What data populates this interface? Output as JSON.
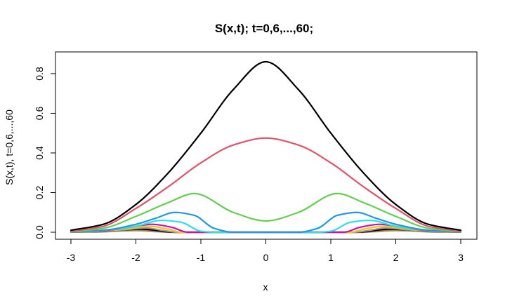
{
  "chart_data": {
    "type": "line",
    "title": "S(x,t); t=0,6,...,60;",
    "xlabel": "x",
    "ylabel": "S(x,t), t=0,6,...,60",
    "xlim": [
      -3,
      3
    ],
    "ylim": [
      0,
      0.86
    ],
    "x_ticks": [
      -3,
      -2,
      -1,
      0,
      1,
      2,
      3
    ],
    "y_ticks": [
      0.0,
      0.2,
      0.4,
      0.6,
      0.8
    ],
    "x_tick_labels": [
      "-3",
      "-2",
      "-1",
      "0",
      "1",
      "2",
      "3"
    ],
    "y_tick_labels": [
      "0.0",
      "0.2",
      "0.4",
      "0.6",
      "0.8"
    ],
    "grid": false,
    "legend": "none",
    "series": [
      {
        "color": "#000000",
        "x": [
          -3,
          -2.5,
          -2,
          -1.5,
          -1,
          -0.5,
          0,
          0.5,
          1,
          1.5,
          2,
          2.5,
          3
        ],
        "y": [
          0.01,
          0.04,
          0.14,
          0.3,
          0.5,
          0.72,
          0.86,
          0.72,
          0.5,
          0.3,
          0.14,
          0.04,
          0.01
        ]
      },
      {
        "color": "#DF536B",
        "x": [
          -3,
          -2.5,
          -2,
          -1.5,
          -1,
          -0.5,
          0,
          0.5,
          1,
          1.5,
          2,
          2.5,
          3
        ],
        "y": [
          0.005,
          0.03,
          0.12,
          0.23,
          0.35,
          0.44,
          0.475,
          0.44,
          0.35,
          0.23,
          0.12,
          0.03,
          0.005
        ]
      },
      {
        "color": "#61D04F",
        "x": [
          -3,
          -2.5,
          -2,
          -1.5,
          -1.1,
          -0.5,
          0,
          0.5,
          1.1,
          1.5,
          2,
          2.5,
          3
        ],
        "y": [
          0.003,
          0.02,
          0.08,
          0.15,
          0.195,
          0.1,
          0.057,
          0.1,
          0.195,
          0.15,
          0.08,
          0.02,
          0.003
        ]
      },
      {
        "color": "#2297E6",
        "x": [
          -3,
          -2.5,
          -2,
          -1.7,
          -1.4,
          -1.1,
          -0.8,
          -0.5,
          0,
          0.5,
          0.8,
          1.1,
          1.4,
          1.7,
          2,
          2.5,
          3
        ],
        "y": [
          0.003,
          0.01,
          0.04,
          0.07,
          0.1,
          0.085,
          0.02,
          0,
          0,
          0,
          0.02,
          0.085,
          0.1,
          0.07,
          0.04,
          0.01,
          0.003
        ]
      },
      {
        "color": "#28E2E5",
        "x": [
          -3,
          -2.5,
          -2,
          -1.6,
          -1.3,
          -1,
          -0.8,
          0,
          0.8,
          1,
          1.3,
          1.6,
          2,
          2.5,
          3
        ],
        "y": [
          0.002,
          0.01,
          0.03,
          0.06,
          0.05,
          0.005,
          0,
          0,
          0,
          0.005,
          0.05,
          0.06,
          0.03,
          0.01,
          0.002
        ]
      },
      {
        "color": "#CD0BBC",
        "x": [
          -3,
          -2.5,
          -2.1,
          -1.75,
          -1.45,
          -1.2,
          0,
          1.2,
          1.45,
          1.75,
          2.1,
          2.5,
          3
        ],
        "y": [
          0.002,
          0.008,
          0.025,
          0.04,
          0.025,
          0,
          0,
          0,
          0.025,
          0.04,
          0.025,
          0.008,
          0.002
        ]
      },
      {
        "color": "#F5C710",
        "x": [
          -3,
          -2.5,
          -2.1,
          -1.8,
          -1.5,
          -1.3,
          0,
          1.3,
          1.5,
          1.8,
          2.1,
          2.5,
          3
        ],
        "y": [
          0.002,
          0.006,
          0.02,
          0.03,
          0.015,
          0,
          0,
          0,
          0.015,
          0.03,
          0.02,
          0.006,
          0.002
        ]
      },
      {
        "color": "#9E9E9E",
        "x": [
          -3,
          -2.5,
          -2.1,
          -1.85,
          -1.6,
          -1.35,
          0,
          1.35,
          1.6,
          1.85,
          2.1,
          2.5,
          3
        ],
        "y": [
          0.001,
          0.005,
          0.015,
          0.022,
          0.01,
          0,
          0,
          0,
          0.01,
          0.022,
          0.015,
          0.005,
          0.001
        ]
      },
      {
        "color": "#000000",
        "x": [
          -3,
          -2.5,
          -2.2,
          -1.9,
          -1.65,
          -1.4,
          0,
          1.4,
          1.65,
          1.9,
          2.2,
          2.5,
          3
        ],
        "y": [
          0.001,
          0.004,
          0.012,
          0.016,
          0.008,
          0,
          0,
          0,
          0.008,
          0.016,
          0.012,
          0.004,
          0.001
        ]
      },
      {
        "color": "#DF536B",
        "x": [
          -3,
          -2.5,
          -2.2,
          -1.95,
          -1.7,
          -1.45,
          0,
          1.45,
          1.7,
          1.95,
          2.2,
          2.5,
          3
        ],
        "y": [
          0.001,
          0.003,
          0.009,
          0.012,
          0.006,
          0,
          0,
          0,
          0.006,
          0.012,
          0.009,
          0.003,
          0.001
        ]
      },
      {
        "color": "#61D04F",
        "x": [
          -3,
          -2.5,
          -2.25,
          -2,
          -1.75,
          -1.5,
          0,
          1.5,
          1.75,
          2,
          2.25,
          2.5,
          3
        ],
        "y": [
          0.001,
          0.002,
          0.006,
          0.008,
          0.004,
          0,
          0,
          0,
          0.004,
          0.008,
          0.006,
          0.002,
          0.001
        ]
      }
    ]
  }
}
